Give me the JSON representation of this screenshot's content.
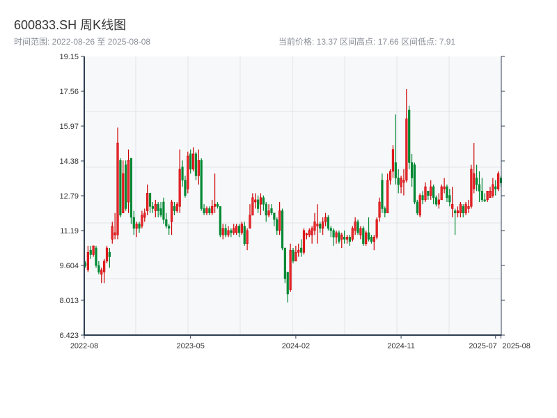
{
  "header": {
    "title": "600833.SH 周K线图",
    "range_text": "时间范围: 2022-08-26 至 2025-08-08",
    "stats_text": "当前价格: 13.37  区间高点: 17.66  区间低点: 7.91"
  },
  "colors": {
    "up": "#cc0000",
    "up_fill": "#e8262b",
    "down": "#008833",
    "plot_bg": "#f7f8fa",
    "grid": "#e1e4ea",
    "axis": "#2e3e50"
  },
  "chart_data": {
    "type": "candlestick",
    "title": "",
    "xlabel": "",
    "ylabel": "",
    "ylim": [
      6.423,
      19.15
    ],
    "grid": true,
    "y_ticks": [
      "19.15",
      "17.56",
      "15.97",
      "14.38",
      "12.79",
      "11.19",
      "9.604",
      "8.013",
      "6.423"
    ],
    "x_ticks": [
      {
        "label": "2022-08",
        "date": "2022-08-26"
      },
      {
        "label": "2023-05",
        "date": "2023-05-26"
      },
      {
        "label": "2024-02",
        "date": "2024-02-23"
      },
      {
        "label": "2024-11",
        "date": "2024-11-22"
      },
      {
        "label": "2025-07",
        "date": "2025-07-25"
      },
      {
        "label": "2025-08",
        "date": "2025-08-08"
      }
    ],
    "fields": [
      "date",
      "open",
      "close",
      "low",
      "high"
    ],
    "candles": [
      [
        "2022-08-26",
        9.7,
        9.6,
        9.5,
        9.8
      ],
      [
        "2022-09-02",
        9.4,
        10.2,
        9.3,
        10.5
      ],
      [
        "2022-09-09",
        10.3,
        10.1,
        9.9,
        10.5
      ],
      [
        "2022-09-16",
        10.1,
        10.5,
        10.0,
        10.5
      ],
      [
        "2022-09-23",
        10.4,
        9.6,
        9.5,
        10.5
      ],
      [
        "2022-09-30",
        9.6,
        9.3,
        9.2,
        9.8
      ],
      [
        "2022-10-07",
        9.2,
        9.4,
        8.8,
        9.5
      ],
      [
        "2022-10-14",
        9.3,
        9.8,
        8.8,
        9.9
      ],
      [
        "2022-10-21",
        9.8,
        10.4,
        9.7,
        10.5
      ],
      [
        "2022-10-28",
        10.2,
        10.0,
        9.5,
        10.4
      ],
      [
        "2022-11-04",
        10.8,
        11.4,
        10.6,
        11.6
      ],
      [
        "2022-11-11",
        11.0,
        11.1,
        10.8,
        12.0
      ],
      [
        "2022-11-18",
        11.0,
        15.2,
        10.8,
        15.9
      ],
      [
        "2022-11-25",
        14.4,
        11.9,
        11.8,
        14.5
      ],
      [
        "2022-12-02",
        12.0,
        13.8,
        12.0,
        14.4
      ],
      [
        "2022-12-09",
        14.2,
        12.2,
        12.1,
        14.4
      ],
      [
        "2022-12-16",
        12.5,
        14.4,
        12.0,
        14.9
      ],
      [
        "2022-12-23",
        14.5,
        11.8,
        11.5,
        14.5
      ],
      [
        "2022-12-30",
        11.8,
        11.3,
        11.0,
        12.1
      ],
      [
        "2023-01-06",
        11.3,
        11.5,
        10.9,
        11.6
      ],
      [
        "2023-01-13",
        11.5,
        11.3,
        11.1,
        11.6
      ],
      [
        "2023-01-20",
        11.4,
        11.9,
        11.3,
        12.1
      ],
      [
        "2023-01-27",
        11.8,
        12.0,
        11.6,
        12.2
      ],
      [
        "2023-02-03",
        12.1,
        12.9,
        11.9,
        13.3
      ],
      [
        "2023-02-10",
        12.9,
        12.3,
        12.0,
        12.9
      ],
      [
        "2023-02-17",
        12.3,
        12.2,
        12.0,
        12.5
      ],
      [
        "2023-02-24",
        12.1,
        12.4,
        11.8,
        12.6
      ],
      [
        "2023-03-03",
        12.4,
        12.1,
        11.8,
        12.5
      ],
      [
        "2023-03-10",
        12.2,
        11.9,
        11.8,
        12.5
      ],
      [
        "2023-03-17",
        12.5,
        11.7,
        11.5,
        12.7
      ],
      [
        "2023-03-24",
        11.7,
        11.4,
        11.3,
        12.0
      ],
      [
        "2023-03-31",
        11.4,
        11.3,
        11.0,
        11.5
      ],
      [
        "2023-04-07",
        11.6,
        12.5,
        11.0,
        12.6
      ],
      [
        "2023-04-14",
        12.3,
        12.1,
        11.9,
        12.5
      ],
      [
        "2023-04-21",
        12.1,
        12.4,
        12.0,
        12.5
      ],
      [
        "2023-04-28",
        12.3,
        14.0,
        12.0,
        14.9
      ],
      [
        "2023-05-05",
        14.1,
        13.5,
        13.2,
        14.4
      ],
      [
        "2023-05-12",
        13.5,
        12.8,
        12.7,
        13.7
      ],
      [
        "2023-05-19",
        13.1,
        14.6,
        12.9,
        14.8
      ],
      [
        "2023-05-26",
        14.7,
        14.0,
        13.8,
        14.9
      ],
      [
        "2023-06-02",
        14.0,
        14.7,
        13.9,
        15.0
      ],
      [
        "2023-06-09",
        14.7,
        13.7,
        13.5,
        14.8
      ],
      [
        "2023-06-16",
        13.7,
        14.4,
        13.3,
        14.9
      ],
      [
        "2023-06-23",
        14.4,
        12.2,
        12.1,
        14.5
      ],
      [
        "2023-06-30",
        12.2,
        12.0,
        11.9,
        12.4
      ],
      [
        "2023-07-07",
        12.0,
        12.2,
        11.9,
        12.3
      ],
      [
        "2023-07-14",
        12.2,
        12.0,
        11.9,
        12.3
      ],
      [
        "2023-07-21",
        12.0,
        12.3,
        11.9,
        12.6
      ],
      [
        "2023-07-28",
        12.3,
        12.4,
        12.0,
        13.8
      ],
      [
        "2023-08-04",
        12.4,
        12.3,
        12.2,
        12.5
      ],
      [
        "2023-08-11",
        12.3,
        11.0,
        10.9,
        12.3
      ],
      [
        "2023-08-18",
        11.0,
        11.3,
        10.8,
        11.5
      ],
      [
        "2023-08-25",
        11.3,
        11.0,
        10.9,
        11.5
      ],
      [
        "2023-09-01",
        11.0,
        11.2,
        10.9,
        11.4
      ],
      [
        "2023-09-08",
        11.2,
        11.1,
        10.9,
        11.3
      ],
      [
        "2023-09-15",
        11.1,
        11.3,
        11.0,
        11.5
      ],
      [
        "2023-09-22",
        11.1,
        11.4,
        11.0,
        11.5
      ],
      [
        "2023-09-29",
        11.4,
        11.1,
        10.9,
        11.5
      ],
      [
        "2023-10-06",
        11.1,
        11.5,
        11.0,
        11.6
      ],
      [
        "2023-10-13",
        11.4,
        10.6,
        10.5,
        11.6
      ],
      [
        "2023-10-20",
        10.6,
        11.2,
        10.3,
        11.3
      ],
      [
        "2023-10-27",
        11.3,
        11.9,
        11.3,
        12.4
      ],
      [
        "2023-11-03",
        11.9,
        12.7,
        11.9,
        12.9
      ],
      [
        "2023-11-10",
        12.5,
        12.6,
        12.2,
        12.9
      ],
      [
        "2023-11-17",
        12.6,
        12.2,
        12.0,
        12.8
      ],
      [
        "2023-11-24",
        12.4,
        12.7,
        11.9,
        12.9
      ],
      [
        "2023-12-01",
        12.7,
        12.4,
        12.1,
        12.8
      ],
      [
        "2023-12-08",
        12.4,
        11.9,
        11.6,
        12.5
      ],
      [
        "2023-12-15",
        11.9,
        12.1,
        11.8,
        12.4
      ],
      [
        "2023-12-22",
        12.2,
        12.0,
        11.9,
        12.4
      ],
      [
        "2023-12-29",
        12.0,
        11.7,
        11.4,
        12.0
      ],
      [
        "2024-01-05",
        11.7,
        11.2,
        11.0,
        11.8
      ],
      [
        "2024-01-12",
        11.2,
        12.1,
        11.0,
        12.5
      ],
      [
        "2024-01-19",
        12.1,
        10.4,
        10.3,
        12.2
      ],
      [
        "2024-01-26",
        10.4,
        9.0,
        8.8,
        10.4
      ],
      [
        "2024-02-02",
        9.3,
        8.3,
        7.91,
        9.3
      ],
      [
        "2024-02-09",
        8.5,
        10.3,
        8.4,
        10.6
      ],
      [
        "2024-02-16",
        10.3,
        9.8,
        9.7,
        10.4
      ],
      [
        "2024-02-23",
        9.8,
        10.2,
        9.8,
        10.5
      ],
      [
        "2024-03-01",
        10.2,
        10.3,
        10.0,
        10.6
      ],
      [
        "2024-03-08",
        10.4,
        10.2,
        10.0,
        10.8
      ],
      [
        "2024-03-15",
        10.2,
        11.2,
        10.1,
        11.3
      ],
      [
        "2024-03-22",
        11.0,
        11.05,
        10.8,
        11.1
      ],
      [
        "2024-03-29",
        11.0,
        11.2,
        10.9,
        11.3
      ],
      [
        "2024-04-05",
        11.0,
        11.3,
        10.6,
        11.4
      ],
      [
        "2024-04-12",
        11.2,
        11.6,
        11.0,
        12.0
      ],
      [
        "2024-04-19",
        11.4,
        11.5,
        10.6,
        12.4
      ],
      [
        "2024-04-26",
        11.5,
        11.3,
        11.1,
        11.6
      ],
      [
        "2024-05-03",
        11.3,
        11.6,
        11.0,
        11.8
      ],
      [
        "2024-05-10",
        11.6,
        11.8,
        11.4,
        12.0
      ],
      [
        "2024-05-17",
        11.8,
        11.3,
        11.2,
        11.9
      ],
      [
        "2024-05-24",
        11.3,
        11.2,
        10.9,
        11.4
      ],
      [
        "2024-05-31",
        11.2,
        10.9,
        10.5,
        11.3
      ],
      [
        "2024-06-07",
        10.9,
        11.1,
        10.6,
        11.2
      ],
      [
        "2024-06-14",
        11.1,
        10.7,
        10.6,
        11.2
      ],
      [
        "2024-06-21",
        10.8,
        11.0,
        10.4,
        11.1
      ],
      [
        "2024-06-28",
        10.9,
        10.8,
        10.6,
        11.2
      ],
      [
        "2024-07-05",
        10.8,
        10.9,
        10.6,
        11.0
      ],
      [
        "2024-07-12",
        10.9,
        10.7,
        10.5,
        11.0
      ],
      [
        "2024-07-19",
        10.8,
        11.3,
        10.7,
        11.4
      ],
      [
        "2024-07-26",
        11.2,
        11.6,
        11.0,
        11.8
      ],
      [
        "2024-08-02",
        11.6,
        11.1,
        11.0,
        11.7
      ],
      [
        "2024-08-09",
        11.0,
        11.3,
        10.8,
        11.4
      ],
      [
        "2024-08-16",
        11.3,
        10.6,
        10.5,
        11.4
      ],
      [
        "2024-08-23",
        10.6,
        11.1,
        10.5,
        11.2
      ],
      [
        "2024-08-30",
        11.1,
        10.8,
        10.7,
        11.8
      ],
      [
        "2024-09-06",
        10.9,
        10.7,
        10.6,
        11.0
      ],
      [
        "2024-09-13",
        10.7,
        10.9,
        10.3,
        11.0
      ],
      [
        "2024-09-20",
        10.9,
        11.7,
        10.8,
        11.8
      ],
      [
        "2024-09-27",
        11.8,
        12.5,
        11.6,
        12.7
      ],
      [
        "2024-10-04",
        13.5,
        12.2,
        12.0,
        13.8
      ],
      [
        "2024-10-11",
        12.2,
        12.0,
        11.8,
        12.3
      ],
      [
        "2024-10-18",
        12.0,
        13.5,
        12.0,
        13.8
      ],
      [
        "2024-10-25",
        13.5,
        13.9,
        13.3,
        14.0
      ],
      [
        "2024-11-01",
        13.9,
        14.9,
        13.6,
        15.1
      ],
      [
        "2024-11-08",
        14.3,
        13.6,
        13.3,
        16.5
      ],
      [
        "2024-11-15",
        13.6,
        13.3,
        12.9,
        14.0
      ],
      [
        "2024-11-22",
        13.2,
        13.6,
        12.9,
        13.7
      ],
      [
        "2024-11-29",
        13.4,
        13.5,
        12.8,
        14.0
      ],
      [
        "2024-12-06",
        13.5,
        16.3,
        13.4,
        17.66
      ],
      [
        "2024-12-13",
        16.7,
        14.3,
        14.0,
        16.9
      ],
      [
        "2024-12-20",
        14.3,
        13.6,
        13.2,
        14.7
      ],
      [
        "2024-12-27",
        14.2,
        12.5,
        12.4,
        14.3
      ],
      [
        "2025-01-03",
        12.5,
        12.0,
        11.9,
        12.6
      ],
      [
        "2025-01-10",
        11.9,
        12.8,
        11.8,
        12.9
      ],
      [
        "2025-01-17",
        12.8,
        12.6,
        12.4,
        13.0
      ],
      [
        "2025-01-24",
        12.6,
        13.2,
        12.5,
        13.4
      ],
      [
        "2025-01-31",
        13.0,
        12.8,
        12.6,
        13.0
      ],
      [
        "2025-02-07",
        12.8,
        13.2,
        12.6,
        13.5
      ],
      [
        "2025-02-14",
        13.2,
        12.7,
        12.4,
        13.3
      ],
      [
        "2025-02-21",
        12.7,
        12.4,
        12.3,
        12.8
      ],
      [
        "2025-02-28",
        12.4,
        12.6,
        12.2,
        12.9
      ],
      [
        "2025-03-07",
        12.6,
        13.2,
        12.6,
        13.3
      ],
      [
        "2025-03-14",
        13.1,
        13.2,
        12.9,
        13.6
      ],
      [
        "2025-03-21",
        13.2,
        12.7,
        12.5,
        13.3
      ],
      [
        "2025-03-28",
        12.8,
        12.5,
        12.3,
        13.1
      ],
      [
        "2025-04-04",
        12.2,
        12.4,
        11.8,
        13.2
      ],
      [
        "2025-04-11",
        12.1,
        12.0,
        11.0,
        12.2
      ],
      [
        "2025-04-18",
        12.0,
        12.1,
        11.8,
        12.3
      ],
      [
        "2025-04-25",
        12.0,
        12.4,
        11.8,
        12.5
      ],
      [
        "2025-05-02",
        12.3,
        12.0,
        11.8,
        12.4
      ],
      [
        "2025-05-09",
        12.0,
        12.4,
        11.9,
        12.5
      ],
      [
        "2025-05-16",
        12.2,
        12.3,
        12.0,
        12.6
      ],
      [
        "2025-05-23",
        12.3,
        14.0,
        12.2,
        14.2
      ],
      [
        "2025-05-30",
        13.1,
        13.8,
        12.9,
        15.2
      ],
      [
        "2025-06-06",
        13.6,
        13.3,
        13.0,
        14.2
      ],
      [
        "2025-06-13",
        13.3,
        13.0,
        12.5,
        13.9
      ],
      [
        "2025-06-20",
        13.0,
        12.6,
        12.5,
        13.6
      ],
      [
        "2025-06-27",
        12.6,
        12.55,
        12.5,
        12.9
      ],
      [
        "2025-07-04",
        12.6,
        13.0,
        12.5,
        13.0
      ],
      [
        "2025-07-11",
        12.7,
        13.0,
        12.7,
        13.2
      ],
      [
        "2025-07-18",
        12.8,
        13.3,
        12.7,
        13.6
      ],
      [
        "2025-07-25",
        13.2,
        13.1,
        12.8,
        13.5
      ],
      [
        "2025-08-01",
        13.1,
        13.8,
        13.0,
        13.9
      ],
      [
        "2025-08-08",
        13.6,
        13.37,
        13.2,
        13.7
      ]
    ]
  }
}
